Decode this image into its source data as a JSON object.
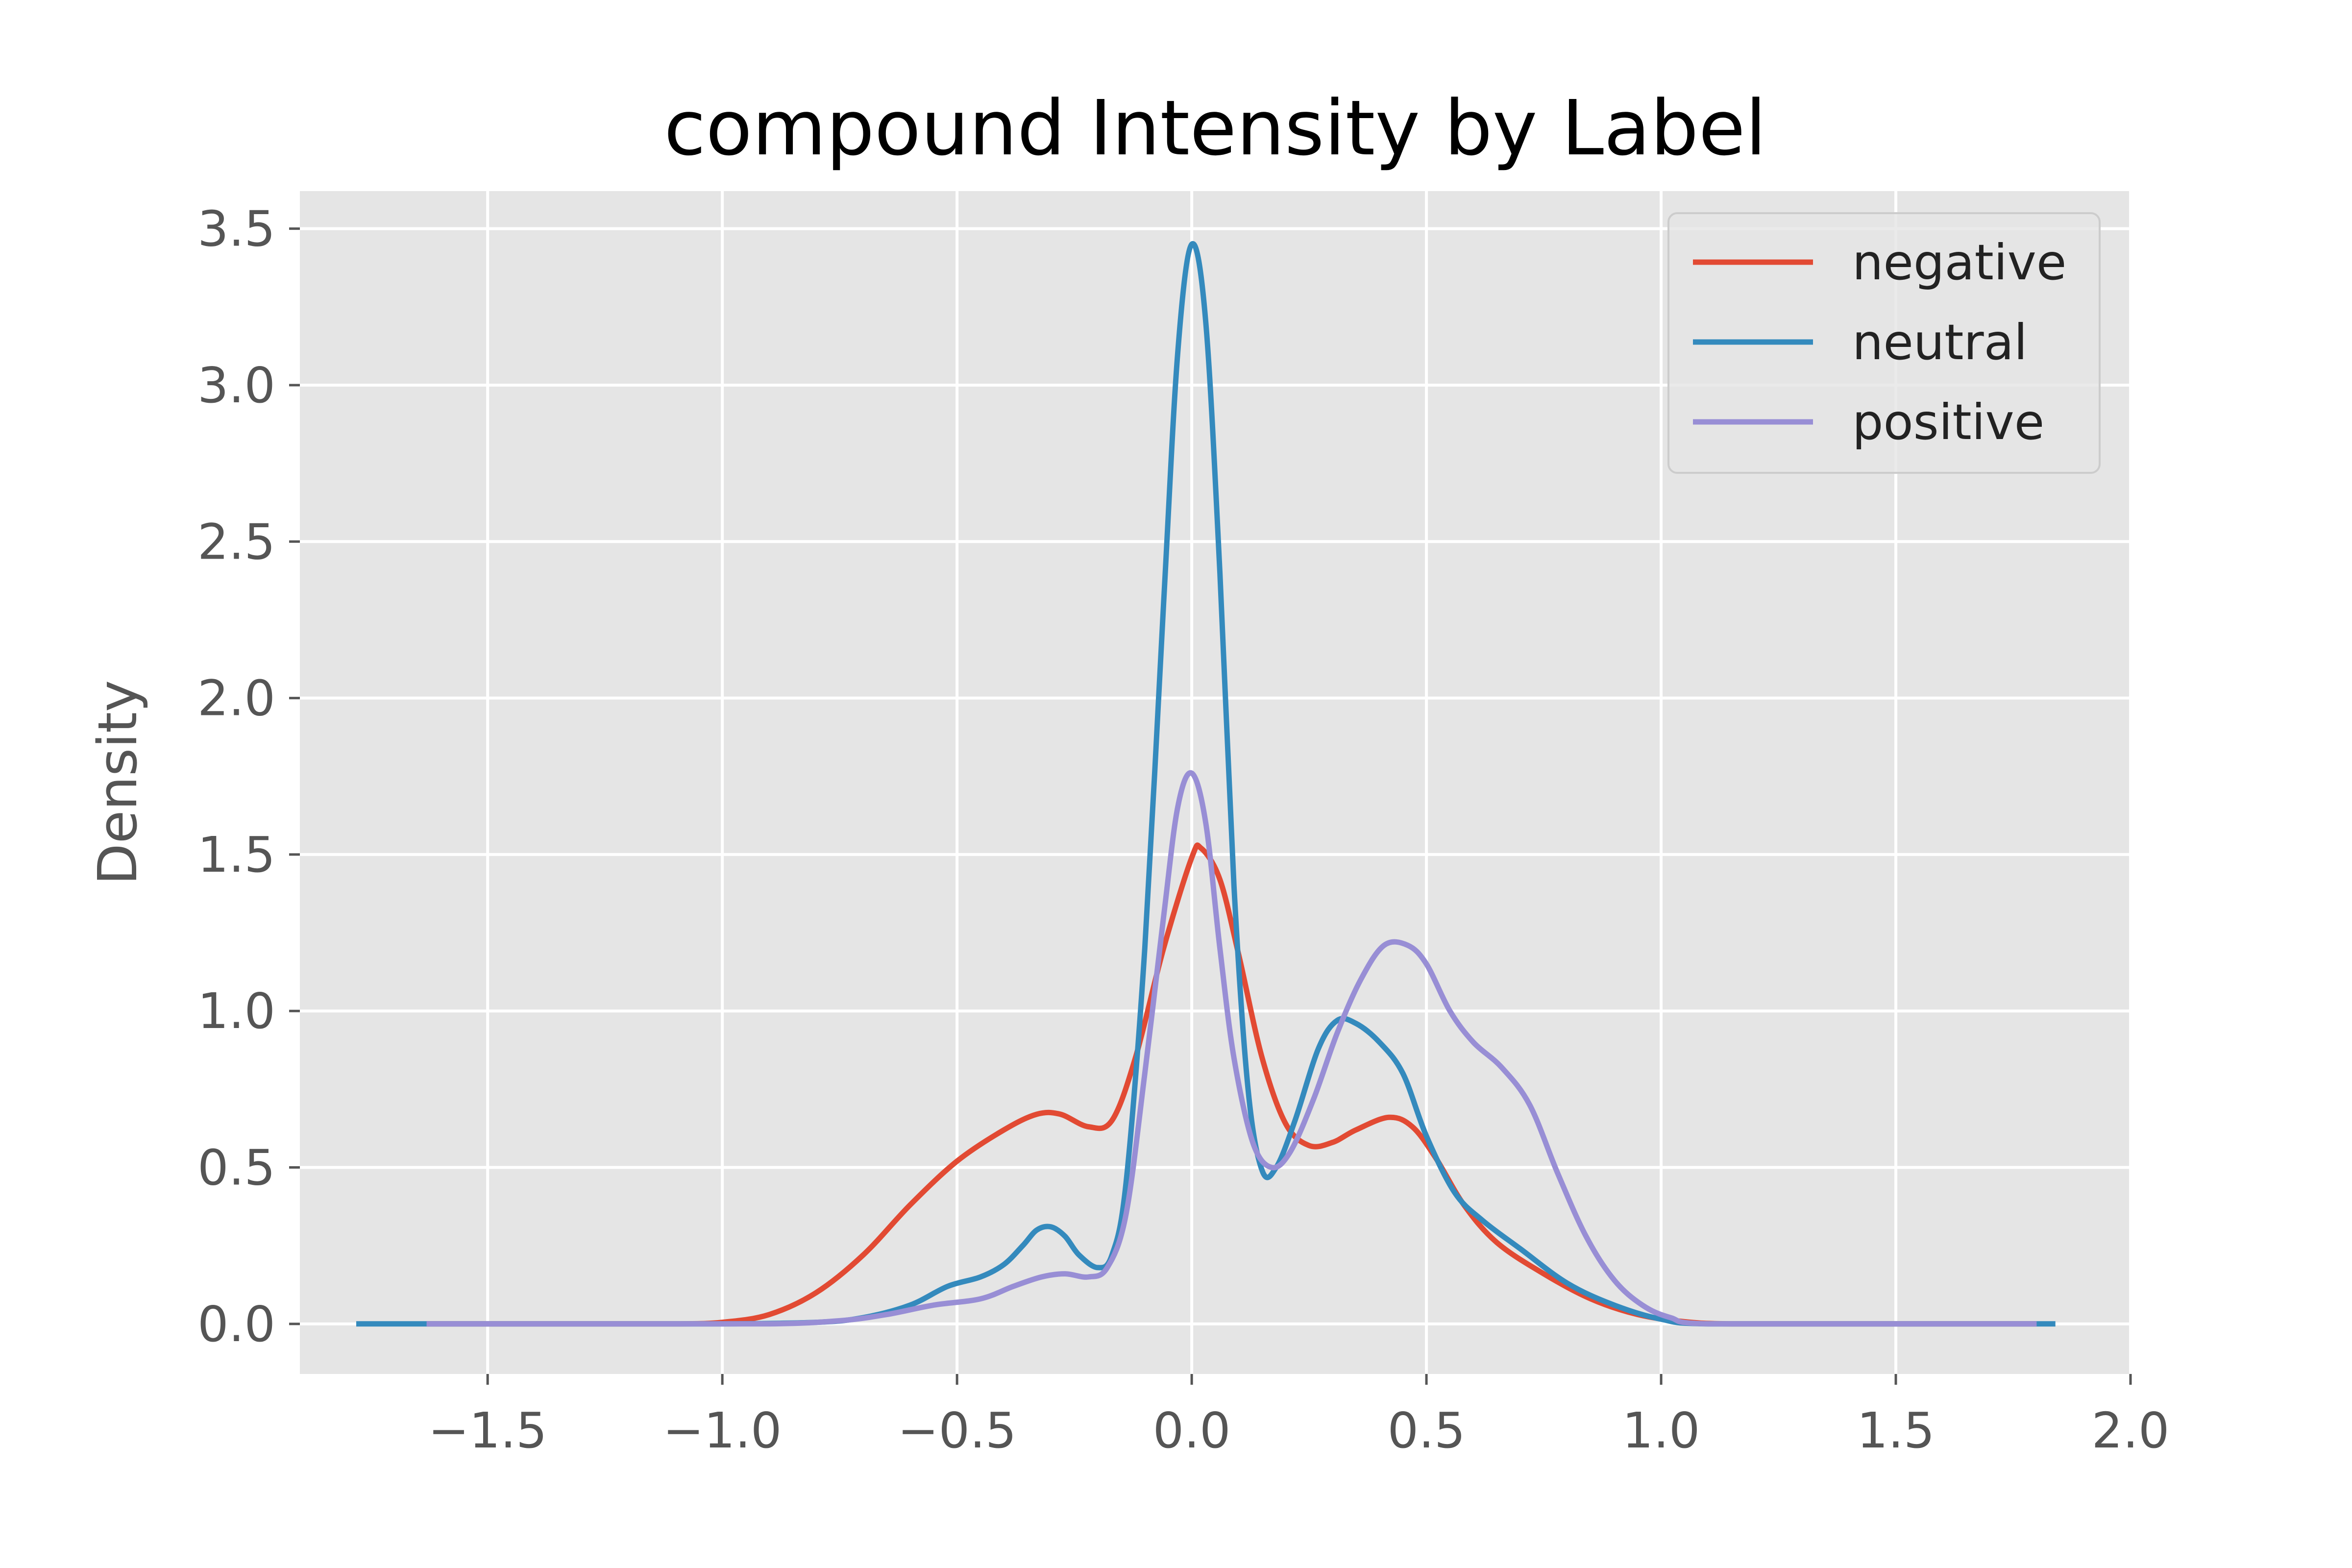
{
  "chart_data": {
    "type": "line",
    "title": "compound Intensity by Label",
    "xlabel": "",
    "ylabel": "Density",
    "xlim": [
      -1.9,
      2.0
    ],
    "ylim": [
      -0.16,
      3.62
    ],
    "xticks": [
      {
        "value": -1.5,
        "label": "−1.5"
      },
      {
        "value": -1.0,
        "label": "−1.0"
      },
      {
        "value": -0.5,
        "label": "−0.5"
      },
      {
        "value": 0.0,
        "label": "0.0"
      },
      {
        "value": 0.5,
        "label": "0.5"
      },
      {
        "value": 1.0,
        "label": "1.0"
      },
      {
        "value": 1.5,
        "label": "1.5"
      },
      {
        "value": 2.0,
        "label": "2.0"
      }
    ],
    "yticks": [
      {
        "value": 0.0,
        "label": "0.0"
      },
      {
        "value": 0.5,
        "label": "0.5"
      },
      {
        "value": 1.0,
        "label": "1.0"
      },
      {
        "value": 1.5,
        "label": "1.5"
      },
      {
        "value": 2.0,
        "label": "2.0"
      },
      {
        "value": 2.5,
        "label": "2.5"
      },
      {
        "value": 3.0,
        "label": "3.0"
      },
      {
        "value": 3.5,
        "label": "3.5"
      }
    ],
    "grid": true,
    "background": "#e5e5e5",
    "legend_position": "top-right",
    "series": [
      {
        "name": "negative",
        "color": "#e24a33",
        "points": [
          [
            -1.63,
            0.0
          ],
          [
            -1.3,
            0.0
          ],
          [
            -1.1,
            0.0
          ],
          [
            -1.0,
            0.005
          ],
          [
            -0.9,
            0.03
          ],
          [
            -0.8,
            0.1
          ],
          [
            -0.7,
            0.22
          ],
          [
            -0.6,
            0.38
          ],
          [
            -0.5,
            0.52
          ],
          [
            -0.4,
            0.62
          ],
          [
            -0.33,
            0.67
          ],
          [
            -0.28,
            0.67
          ],
          [
            -0.22,
            0.63
          ],
          [
            -0.17,
            0.65
          ],
          [
            -0.12,
            0.85
          ],
          [
            -0.06,
            1.2
          ],
          [
            0.0,
            1.49
          ],
          [
            0.02,
            1.52
          ],
          [
            0.06,
            1.42
          ],
          [
            0.1,
            1.18
          ],
          [
            0.15,
            0.85
          ],
          [
            0.2,
            0.64
          ],
          [
            0.25,
            0.57
          ],
          [
            0.3,
            0.58
          ],
          [
            0.35,
            0.62
          ],
          [
            0.42,
            0.66
          ],
          [
            0.47,
            0.63
          ],
          [
            0.52,
            0.53
          ],
          [
            0.58,
            0.38
          ],
          [
            0.65,
            0.26
          ],
          [
            0.75,
            0.16
          ],
          [
            0.85,
            0.08
          ],
          [
            0.95,
            0.03
          ],
          [
            1.05,
            0.007
          ],
          [
            1.15,
            0.0
          ],
          [
            1.4,
            0.0
          ],
          [
            1.8,
            0.0
          ]
        ]
      },
      {
        "name": "neutral",
        "color": "#348abd",
        "points": [
          [
            -1.78,
            0.0
          ],
          [
            -1.3,
            0.0
          ],
          [
            -1.0,
            0.0
          ],
          [
            -0.8,
            0.005
          ],
          [
            -0.7,
            0.02
          ],
          [
            -0.6,
            0.06
          ],
          [
            -0.52,
            0.12
          ],
          [
            -0.45,
            0.15
          ],
          [
            -0.4,
            0.19
          ],
          [
            -0.36,
            0.25
          ],
          [
            -0.33,
            0.3
          ],
          [
            -0.3,
            0.31
          ],
          [
            -0.27,
            0.28
          ],
          [
            -0.24,
            0.22
          ],
          [
            -0.2,
            0.18
          ],
          [
            -0.17,
            0.22
          ],
          [
            -0.14,
            0.45
          ],
          [
            -0.1,
            1.2
          ],
          [
            -0.06,
            2.3
          ],
          [
            -0.03,
            3.1
          ],
          [
            0.0,
            3.45
          ],
          [
            0.03,
            3.2
          ],
          [
            0.06,
            2.4
          ],
          [
            0.09,
            1.4
          ],
          [
            0.12,
            0.75
          ],
          [
            0.15,
            0.49
          ],
          [
            0.18,
            0.5
          ],
          [
            0.22,
            0.65
          ],
          [
            0.27,
            0.88
          ],
          [
            0.31,
            0.97
          ],
          [
            0.35,
            0.96
          ],
          [
            0.4,
            0.9
          ],
          [
            0.45,
            0.8
          ],
          [
            0.5,
            0.6
          ],
          [
            0.56,
            0.42
          ],
          [
            0.62,
            0.33
          ],
          [
            0.7,
            0.24
          ],
          [
            0.8,
            0.13
          ],
          [
            0.9,
            0.06
          ],
          [
            1.0,
            0.015
          ],
          [
            1.1,
            0.0
          ],
          [
            1.5,
            0.0
          ],
          [
            1.84,
            0.0
          ]
        ]
      },
      {
        "name": "positive",
        "color": "#988ed5",
        "points": [
          [
            -1.63,
            0.0
          ],
          [
            -1.2,
            0.0
          ],
          [
            -0.9,
            0.0
          ],
          [
            -0.75,
            0.01
          ],
          [
            -0.65,
            0.03
          ],
          [
            -0.55,
            0.06
          ],
          [
            -0.45,
            0.08
          ],
          [
            -0.38,
            0.12
          ],
          [
            -0.32,
            0.15
          ],
          [
            -0.27,
            0.16
          ],
          [
            -0.22,
            0.15
          ],
          [
            -0.18,
            0.18
          ],
          [
            -0.14,
            0.35
          ],
          [
            -0.1,
            0.8
          ],
          [
            -0.06,
            1.3
          ],
          [
            -0.03,
            1.65
          ],
          [
            0.0,
            1.76
          ],
          [
            0.03,
            1.6
          ],
          [
            0.06,
            1.2
          ],
          [
            0.09,
            0.85
          ],
          [
            0.13,
            0.58
          ],
          [
            0.17,
            0.5
          ],
          [
            0.21,
            0.55
          ],
          [
            0.26,
            0.72
          ],
          [
            0.31,
            0.93
          ],
          [
            0.36,
            1.1
          ],
          [
            0.41,
            1.21
          ],
          [
            0.46,
            1.21
          ],
          [
            0.5,
            1.15
          ],
          [
            0.55,
            1.0
          ],
          [
            0.6,
            0.9
          ],
          [
            0.66,
            0.82
          ],
          [
            0.72,
            0.7
          ],
          [
            0.78,
            0.48
          ],
          [
            0.84,
            0.28
          ],
          [
            0.9,
            0.14
          ],
          [
            0.96,
            0.06
          ],
          [
            1.02,
            0.02
          ],
          [
            1.1,
            0.0
          ],
          [
            1.5,
            0.0
          ],
          [
            1.8,
            0.0
          ]
        ]
      }
    ]
  }
}
